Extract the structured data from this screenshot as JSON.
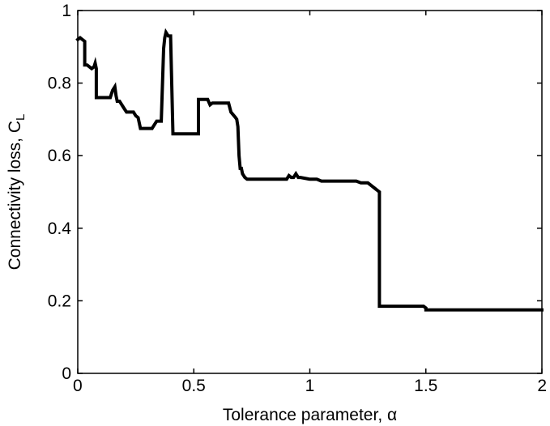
{
  "chart_data": {
    "type": "line",
    "title": "",
    "xlabel": "Tolerance parameter, α",
    "ylabel": "Connectivity loss, C",
    "ylabel_subscript": "L",
    "xlim": [
      0,
      2
    ],
    "ylim": [
      0,
      1
    ],
    "xticks": [
      0,
      0.5,
      1,
      1.5,
      2
    ],
    "xtick_labels": [
      "0",
      "0.5",
      "1",
      "1.5",
      "2"
    ],
    "yticks": [
      0,
      0.2,
      0.4,
      0.6,
      0.8,
      1
    ],
    "ytick_labels": [
      "0",
      "0.2",
      "0.4",
      "0.6",
      "0.8",
      "1"
    ],
    "grid": false,
    "line_color": "#000000",
    "series": [
      {
        "x": [
          0,
          0.01,
          0.02,
          0.03,
          0.03,
          0.04,
          0.05,
          0.06,
          0.07,
          0.075,
          0.08,
          0.08,
          0.09,
          0.1,
          0.12,
          0.14,
          0.15,
          0.16,
          0.165,
          0.17,
          0.18,
          0.2,
          0.21,
          0.22,
          0.24,
          0.25,
          0.26,
          0.27,
          0.28,
          0.29,
          0.3,
          0.32,
          0.34,
          0.35,
          0.36,
          0.37,
          0.375,
          0.38,
          0.39,
          0.4,
          0.41,
          0.41,
          0.42,
          0.45,
          0.5,
          0.52,
          0.52,
          0.55,
          0.56,
          0.57,
          0.58,
          0.6,
          0.62,
          0.64,
          0.65,
          0.66,
          0.68,
          0.685,
          0.69,
          0.695,
          0.7,
          0.705,
          0.71,
          0.72,
          0.73,
          0.75,
          0.8,
          0.85,
          0.88,
          0.9,
          0.91,
          0.92,
          0.93,
          0.94,
          0.95,
          0.96,
          1.0,
          1.03,
          1.05,
          1.1,
          1.15,
          1.2,
          1.22,
          1.25,
          1.26,
          1.27,
          1.28,
          1.29,
          1.3,
          1.3,
          1.31,
          1.35,
          1.4,
          1.45,
          1.49,
          1.5,
          1.5,
          1.55,
          1.6,
          1.7,
          1.8,
          1.9,
          2.0
        ],
        "y": [
          0.92,
          0.925,
          0.92,
          0.915,
          0.85,
          0.85,
          0.845,
          0.84,
          0.845,
          0.855,
          0.84,
          0.76,
          0.76,
          0.76,
          0.76,
          0.76,
          0.78,
          0.79,
          0.765,
          0.75,
          0.75,
          0.73,
          0.72,
          0.72,
          0.72,
          0.71,
          0.705,
          0.675,
          0.675,
          0.675,
          0.675,
          0.675,
          0.695,
          0.695,
          0.695,
          0.895,
          0.925,
          0.94,
          0.93,
          0.93,
          0.66,
          0.66,
          0.66,
          0.66,
          0.66,
          0.66,
          0.755,
          0.755,
          0.755,
          0.74,
          0.745,
          0.745,
          0.745,
          0.745,
          0.745,
          0.72,
          0.705,
          0.7,
          0.68,
          0.6,
          0.565,
          0.565,
          0.55,
          0.54,
          0.535,
          0.535,
          0.535,
          0.535,
          0.535,
          0.535,
          0.545,
          0.54,
          0.54,
          0.55,
          0.54,
          0.54,
          0.535,
          0.535,
          0.53,
          0.53,
          0.53,
          0.53,
          0.525,
          0.525,
          0.52,
          0.515,
          0.51,
          0.505,
          0.5,
          0.185,
          0.185,
          0.185,
          0.185,
          0.185,
          0.185,
          0.18,
          0.175,
          0.175,
          0.175,
          0.175,
          0.175,
          0.175,
          0.175
        ]
      }
    ]
  }
}
